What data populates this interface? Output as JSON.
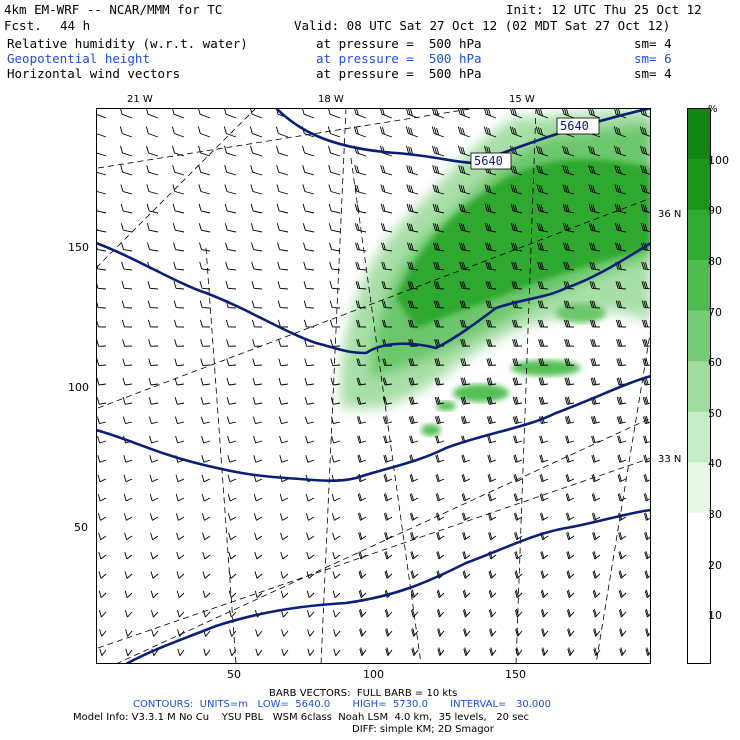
{
  "header": {
    "model": "4km EM-WRF -- NCAR/MMM for TC",
    "init": "Init: 12 UTC Thu 25 Oct 12",
    "fcst_label": "Fcst.",
    "fcst_value": "44 h",
    "valid": "Valid: 08 UTC Sat 27 Oct 12 (02 MDT Sat 27 Oct 12)",
    "fields": [
      {
        "name": "Relative humidity (w.r.t. water)",
        "level": "at pressure =  500 hPa",
        "sm": "sm= 4",
        "color": "#000000"
      },
      {
        "name": "Geopotential height",
        "level": "at pressure =  500 hPa",
        "sm": "sm= 6",
        "color": "#1e4fd8"
      },
      {
        "name": "Horizontal wind vectors",
        "level": "at pressure =  500 hPa",
        "sm": "sm= 4",
        "color": "#000000"
      }
    ]
  },
  "map": {
    "lon_labels": [
      "21 W",
      "18 W",
      "15 W"
    ],
    "lat_labels": [
      "36 N",
      "33 N"
    ],
    "y_ticks": [
      "150",
      "100",
      "50"
    ],
    "x_ticks": [
      "50",
      "100",
      "150"
    ],
    "contour_labels": [
      "5640",
      "5640"
    ],
    "contour_color": "#0a1f7a",
    "rh_color_dark": "#1a8c1a",
    "rh_color_light": "#bfe9bf"
  },
  "colorbar": {
    "unit": "%",
    "labels": [
      "100",
      "90",
      "80",
      "70",
      "60",
      "50",
      "40",
      "30",
      "20",
      "10"
    ],
    "colors": [
      "#ffffff",
      "#ffffff",
      "#ffffff",
      "#e8f8e8",
      "#c8ecc8",
      "#a0dca0",
      "#78cc78",
      "#50bc50",
      "#30aa30",
      "#1a961a",
      "#138413"
    ]
  },
  "footer": {
    "barb": "BARB VECTORS:  FULL BARB = 10 kts",
    "contours": "CONTOURS:  UNITS=m   LOW=  5640.0       HIGH=  5730.0       INTERVAL=   30.000",
    "model_info": "Model Info: V3.3.1 M No Cu    YSU PBL   WSM 6class  Noah LSM  4.0 km,  35 levels,   20 sec",
    "diff": "DIFF: simple KM; 2D Smagor"
  }
}
